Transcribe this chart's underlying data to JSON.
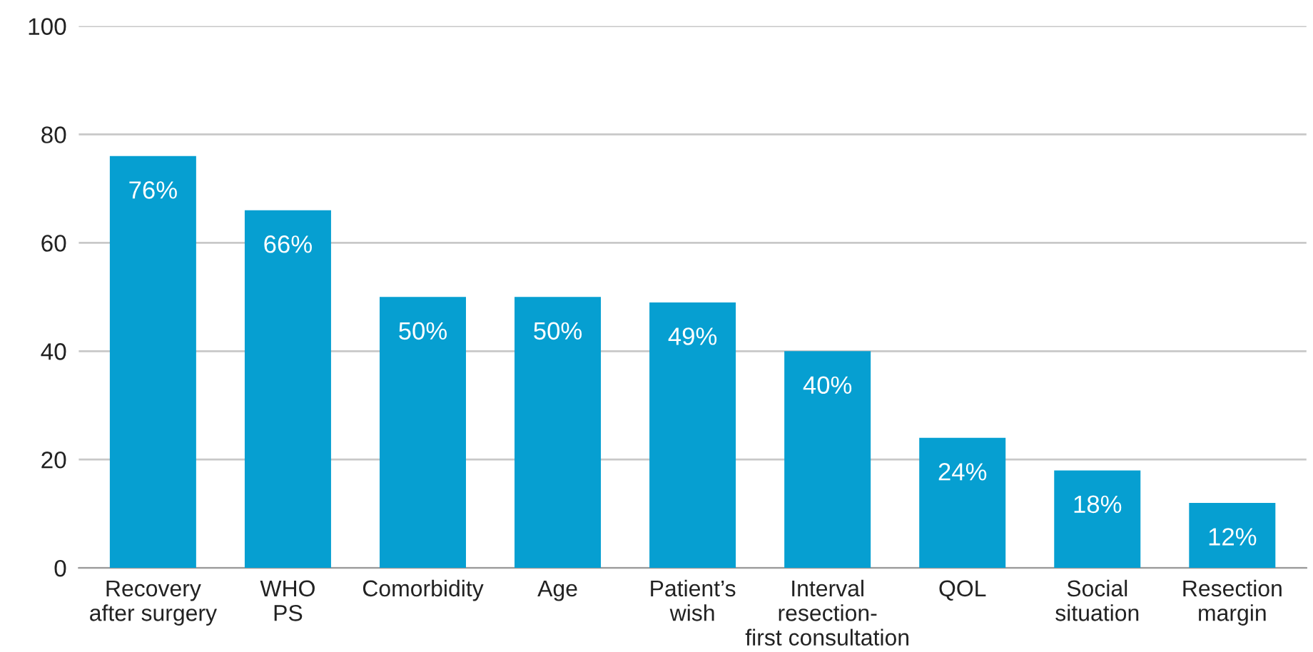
{
  "chart_data": {
    "type": "bar",
    "categories": [
      "Recovery\nafter surgery",
      "WHO\nPS",
      "Comorbidity",
      "Age",
      "Patient’s\nwish",
      "Interval\nresection-\nfirst consultation",
      "QOL",
      "Social\nsituation",
      "Resection\nmargin"
    ],
    "values": [
      76,
      66,
      50,
      50,
      49,
      40,
      24,
      18,
      12
    ],
    "value_labels": [
      "76%",
      "66%",
      "50%",
      "50%",
      "49%",
      "40%",
      "24%",
      "18%",
      "12%"
    ],
    "color": "#069fd1",
    "ylim": [
      0,
      100
    ],
    "yticks": [
      0,
      20,
      40,
      60,
      80,
      100
    ],
    "grid": "y",
    "legend": false
  }
}
